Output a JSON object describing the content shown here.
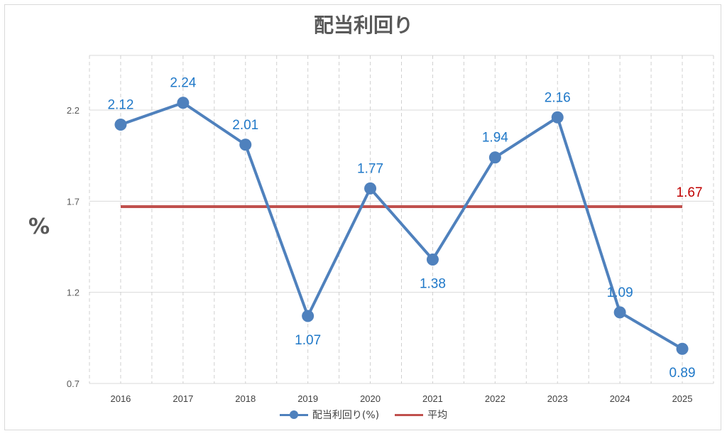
{
  "chart_data": {
    "type": "line",
    "title": "配当利回り",
    "ylabel": "%",
    "xlabel": "",
    "categories": [
      "2016",
      "2017",
      "2018",
      "2019",
      "2020",
      "2021",
      "2022",
      "2023",
      "2024",
      "2025"
    ],
    "ylim": [
      0.7,
      2.5
    ],
    "yticks": [
      "0.7",
      "1.2",
      "1.7",
      "2.2"
    ],
    "grid": "vertical dashed + horizontal solid",
    "legend_position": "bottom",
    "series": [
      {
        "name": "配当利回り(%)",
        "values": [
          2.12,
          2.24,
          2.01,
          1.07,
          1.77,
          1.38,
          1.94,
          2.16,
          1.09,
          0.89
        ],
        "labels": [
          "2.12",
          "2.24",
          "2.01",
          "1.07",
          "1.77",
          "1.38",
          "1.94",
          "2.16",
          "1.09",
          "0.89"
        ],
        "color": "#4f81bd",
        "label_color": "#1f78c8"
      },
      {
        "name": "平均",
        "value": 1.67,
        "label": "1.67",
        "color": "#c0504d",
        "label_color": "#c00000"
      }
    ]
  }
}
